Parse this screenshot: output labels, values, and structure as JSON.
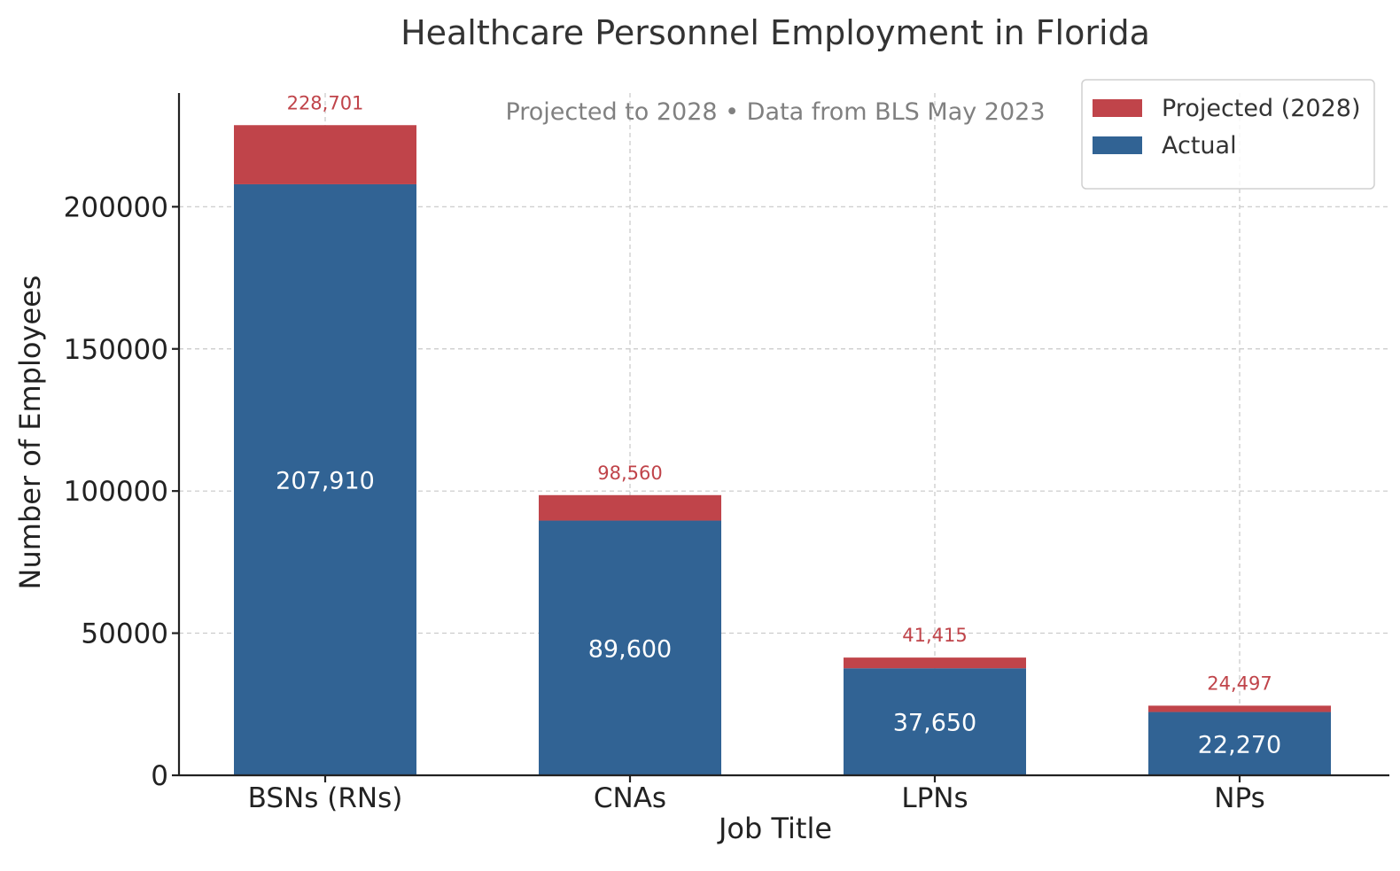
{
  "chart_data": {
    "type": "bar",
    "stacked": true,
    "title": "Healthcare Personnel Employment in Florida",
    "subtitle": "Projected to 2028 • Data from BLS May 2023",
    "xlabel": "Job Title",
    "ylabel": "Number of Employees",
    "categories": [
      "BSNs (RNs)",
      "CNAs",
      "LPNs",
      "NPs"
    ],
    "series": [
      {
        "name": "Actual",
        "color": "#316394",
        "values": [
          207910,
          89600,
          37650,
          22270
        ],
        "labels": [
          "207,910",
          "89,600",
          "37,650",
          "22,270"
        ]
      },
      {
        "name": "Projected (2028)",
        "color": "#c0444a",
        "totals": [
          228701,
          98560,
          41415,
          24497
        ],
        "labels": [
          "228,701",
          "98,560",
          "41,415",
          "24,497"
        ]
      }
    ],
    "ylim": [
      0,
      240000
    ],
    "yticks": [
      0,
      50000,
      100000,
      150000,
      200000
    ],
    "ytick_labels": [
      "0",
      "50000",
      "100000",
      "150000",
      "200000"
    ],
    "grid": true,
    "legend": {
      "placement": "top-right",
      "entries": [
        "Projected (2028)",
        "Actual"
      ]
    }
  }
}
